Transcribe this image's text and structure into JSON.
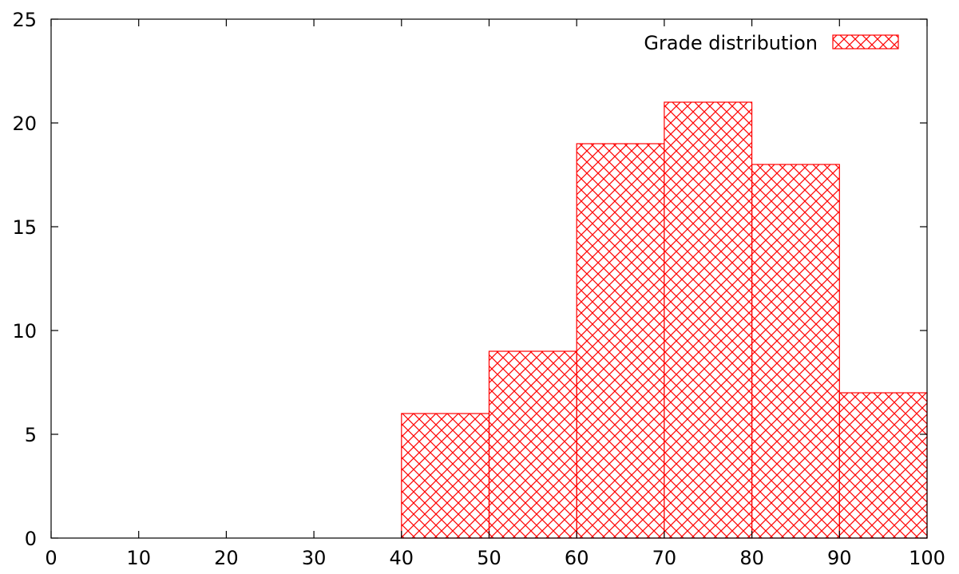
{
  "chart_data": {
    "type": "bar",
    "bins": [
      [
        40,
        50
      ],
      [
        50,
        60
      ],
      [
        60,
        70
      ],
      [
        70,
        80
      ],
      [
        80,
        90
      ],
      [
        90,
        100
      ]
    ],
    "series": [
      {
        "name": "Grade distribution",
        "values": [
          6,
          9,
          19,
          21,
          18,
          7
        ],
        "color": "#ff0000",
        "fill": "crosshatch"
      }
    ],
    "xlim": [
      0,
      100
    ],
    "ylim": [
      0,
      25
    ],
    "x_ticks": [
      "0",
      "10",
      "20",
      "30",
      "40",
      "50",
      "60",
      "70",
      "80",
      "90",
      "100"
    ],
    "y_ticks": [
      "0",
      "5",
      "10",
      "15",
      "20",
      "25"
    ],
    "xlabel": "",
    "ylabel": "",
    "title": "",
    "grid": false,
    "legend_position": "top-right"
  }
}
